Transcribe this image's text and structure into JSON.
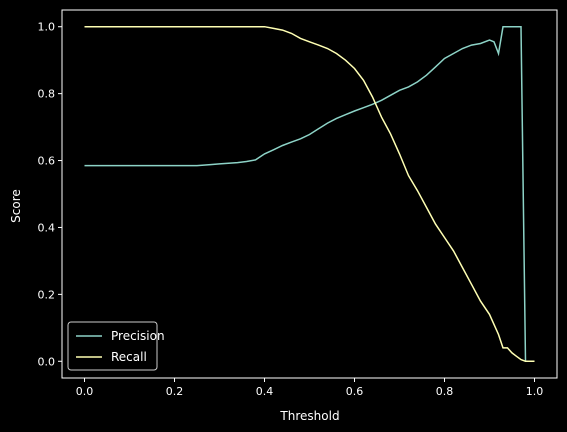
{
  "chart_data": {
    "type": "line",
    "title": "",
    "xlabel": "Threshold",
    "ylabel": "Score",
    "xlim": [
      -0.05,
      1.05
    ],
    "ylim": [
      -0.05,
      1.05
    ],
    "xticks": [
      0.0,
      0.2,
      0.4,
      0.6,
      0.8,
      1.0
    ],
    "xtick_labels": [
      "0.0",
      "0.2",
      "0.4",
      "0.6",
      "0.8",
      "1.0"
    ],
    "yticks": [
      0.0,
      0.2,
      0.4,
      0.6,
      0.8,
      1.0
    ],
    "ytick_labels": [
      "0.0",
      "0.2",
      "0.4",
      "0.6",
      "0.8",
      "1.0"
    ],
    "grid": false,
    "legend_position": "lower-left",
    "background": "#000000",
    "series": [
      {
        "name": "Precision",
        "color": "#8dd3c7",
        "x": [
          0.0,
          0.05,
          0.1,
          0.15,
          0.2,
          0.25,
          0.28,
          0.3,
          0.32,
          0.34,
          0.36,
          0.38,
          0.4,
          0.42,
          0.44,
          0.46,
          0.48,
          0.5,
          0.52,
          0.54,
          0.56,
          0.58,
          0.6,
          0.62,
          0.64,
          0.66,
          0.68,
          0.7,
          0.72,
          0.74,
          0.76,
          0.78,
          0.8,
          0.82,
          0.84,
          0.86,
          0.88,
          0.9,
          0.91,
          0.92,
          0.93,
          0.94,
          0.95,
          0.96,
          0.97,
          0.98,
          0.99,
          1.0
        ],
        "y": [
          0.585,
          0.585,
          0.585,
          0.585,
          0.585,
          0.585,
          0.588,
          0.59,
          0.592,
          0.594,
          0.597,
          0.602,
          0.62,
          0.632,
          0.645,
          0.655,
          0.665,
          0.678,
          0.695,
          0.712,
          0.726,
          0.737,
          0.748,
          0.758,
          0.768,
          0.78,
          0.795,
          0.81,
          0.82,
          0.835,
          0.855,
          0.88,
          0.905,
          0.92,
          0.935,
          0.945,
          0.95,
          0.96,
          0.955,
          0.92,
          1.0,
          1.0,
          1.0,
          1.0,
          1.0,
          0.0,
          0.0,
          0.0
        ]
      },
      {
        "name": "Recall",
        "color": "#ffffb3",
        "x": [
          0.0,
          0.1,
          0.2,
          0.3,
          0.4,
          0.42,
          0.44,
          0.46,
          0.48,
          0.5,
          0.52,
          0.54,
          0.56,
          0.58,
          0.6,
          0.62,
          0.64,
          0.66,
          0.68,
          0.7,
          0.72,
          0.74,
          0.76,
          0.78,
          0.8,
          0.82,
          0.84,
          0.86,
          0.88,
          0.9,
          0.92,
          0.93,
          0.94,
          0.95,
          0.96,
          0.97,
          0.98,
          0.99,
          1.0
        ],
        "y": [
          1.0,
          1.0,
          1.0,
          1.0,
          1.0,
          0.995,
          0.99,
          0.98,
          0.965,
          0.955,
          0.945,
          0.935,
          0.92,
          0.9,
          0.875,
          0.84,
          0.79,
          0.73,
          0.68,
          0.62,
          0.555,
          0.51,
          0.46,
          0.41,
          0.37,
          0.33,
          0.28,
          0.23,
          0.18,
          0.14,
          0.08,
          0.04,
          0.04,
          0.025,
          0.015,
          0.005,
          0.0,
          0.0,
          0.0
        ]
      }
    ]
  }
}
